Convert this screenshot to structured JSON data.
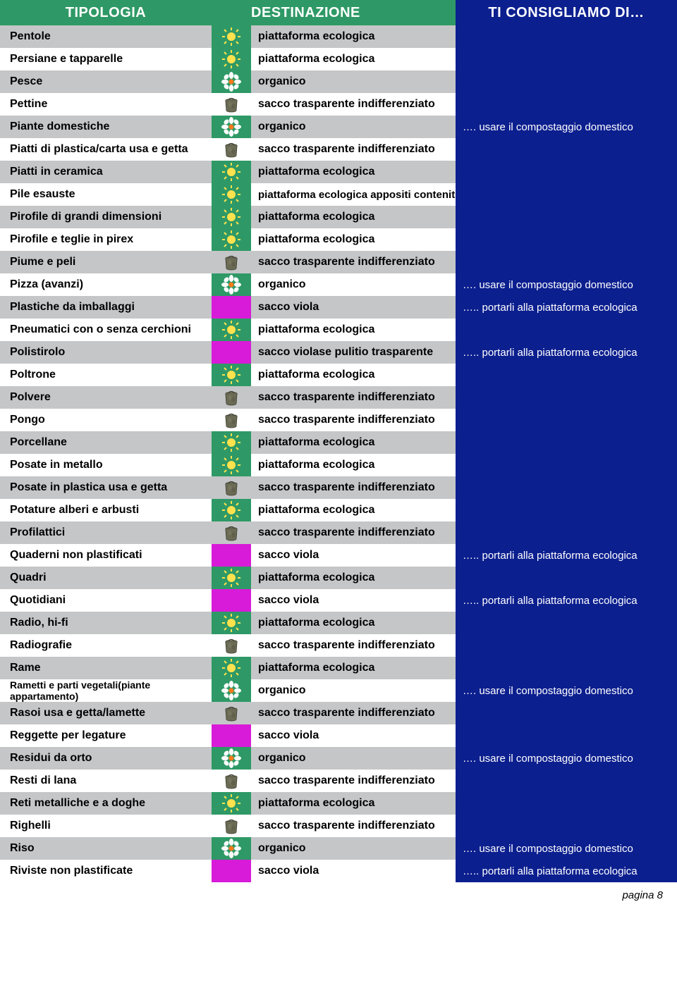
{
  "colors": {
    "header_green": "#2e9966",
    "header_blue": "#0c1f8f",
    "row_even": "#c4c6c8",
    "row_odd": "#ffffff",
    "tip_bg": "#0c1f8f",
    "icon_green": "#2e9966",
    "icon_purple": "#d81bd8"
  },
  "header": {
    "tipologia": "TIPOLOGIA",
    "destinazione": "DESTINAZIONE",
    "tip": "TI CONSIGLIAMO DI…"
  },
  "tips": {
    "compost": "…. usare il compostaggio domestico",
    "piattaforma": "….. portarli alla piattaforma ecologica"
  },
  "dest": {
    "piattaforma": "piattaforma ecologica",
    "organico": "organico",
    "sacco_trasp": "sacco trasparente indifferenziato",
    "piattaforma_cont": "piattaforma ecologica appositi contenitori",
    "sacco_viola": "sacco viola"
  },
  "rows": [
    {
      "t": "Pentole",
      "icon": "sun",
      "d": "piattaforma ecologica",
      "tip": ""
    },
    {
      "t": "Persiane e tapparelle",
      "icon": "sun",
      "d": "piattaforma ecologica",
      "tip": ""
    },
    {
      "t": "Pesce",
      "icon": "flower",
      "d": "organico",
      "tip": ""
    },
    {
      "t": "Pettine",
      "icon": "bag",
      "d": "sacco trasparente indifferenziato",
      "tip": ""
    },
    {
      "t": "Piante domestiche",
      "icon": "flower",
      "d": "organico",
      "tip": "…. usare il compostaggio domestico"
    },
    {
      "t": "Piatti di plastica/carta usa e getta",
      "icon": "bag",
      "d": "sacco trasparente indifferenziato",
      "tip": ""
    },
    {
      "t": "Piatti in ceramica",
      "icon": "sun",
      "d": "piattaforma ecologica",
      "tip": ""
    },
    {
      "t": "Pile esauste",
      "icon": "sun",
      "d": "piattaforma ecologica appositi contenitori",
      "tip": ""
    },
    {
      "t": "Pirofile di grandi dimensioni",
      "icon": "sun",
      "d": "piattaforma ecologica",
      "tip": ""
    },
    {
      "t": "Pirofile e teglie in pirex",
      "icon": "sun",
      "d": "piattaforma ecologica",
      "tip": ""
    },
    {
      "t": "Piume e peli",
      "icon": "bag",
      "d": "sacco trasparente indifferenziato",
      "tip": ""
    },
    {
      "t": "Pizza (avanzi)",
      "icon": "flower",
      "d": "organico",
      "tip": "…. usare il compostaggio domestico"
    },
    {
      "t": "Plastiche da imballaggi",
      "icon": "purple",
      "d": "sacco viola",
      "tip": "….. portarli alla piattaforma ecologica"
    },
    {
      "t": "Pneumatici con o senza cerchioni",
      "icon": "sun",
      "d": "piattaforma ecologica",
      "tip": ""
    },
    {
      "t": "Polistirolo",
      "icon": "purple",
      "d_html": "sacco viola <b>se puliti</b> o trasparente",
      "tip": "….. portarli alla piattaforma ecologica"
    },
    {
      "t": "Poltrone",
      "icon": "sun",
      "d": "piattaforma ecologica",
      "tip": ""
    },
    {
      "t": "Polvere",
      "icon": "bag",
      "d": "sacco trasparente indifferenziato",
      "tip": ""
    },
    {
      "t": "Pongo",
      "icon": "bag",
      "d": "sacco trasparente indifferenziato",
      "tip": ""
    },
    {
      "t": "Porcellane",
      "icon": "sun",
      "d": "piattaforma ecologica",
      "tip": ""
    },
    {
      "t": "Posate in metallo",
      "icon": "sun",
      "d": "piattaforma ecologica",
      "tip": ""
    },
    {
      "t": "Posate in plastica usa e getta",
      "icon": "bag",
      "d": "sacco trasparente indifferenziato",
      "tip": ""
    },
    {
      "t": "Potature alberi e arbusti",
      "icon": "sun",
      "d": "piattaforma ecologica",
      "tip": ""
    },
    {
      "t": "Profilattici",
      "icon": "bag",
      "d": "sacco trasparente indifferenziato",
      "tip": ""
    },
    {
      "t": "Quaderni non plastificati",
      "icon": "purple",
      "d": "sacco viola",
      "tip": "….. portarli alla piattaforma ecologica"
    },
    {
      "t": "Quadri",
      "icon": "sun",
      "d": "piattaforma ecologica",
      "tip": ""
    },
    {
      "t": "Quotidiani",
      "icon": "purple",
      "d": "sacco viola",
      "tip": "….. portarli alla piattaforma ecologica"
    },
    {
      "t": "Radio, hi-fi",
      "icon": "sun",
      "d": "piattaforma ecologica",
      "tip": ""
    },
    {
      "t": "Radiografie",
      "icon": "bag",
      "d": "sacco trasparente indifferenziato",
      "tip": ""
    },
    {
      "t": "Rame",
      "icon": "sun",
      "d": "piattaforma ecologica",
      "tip": ""
    },
    {
      "t": "Rametti e parti vegetali(piante appartamento)",
      "icon": "flower",
      "d": "organico",
      "tip": "…. usare il compostaggio domestico"
    },
    {
      "t": "Rasoi usa e getta/lamette",
      "icon": "bag",
      "d": "sacco trasparente indifferenziato",
      "tip": ""
    },
    {
      "t": "Reggette per legature",
      "icon": "purple",
      "d": "sacco viola",
      "tip": ""
    },
    {
      "t": "Residui da orto",
      "icon": "flower",
      "d": "organico",
      "tip": "…. usare il compostaggio domestico"
    },
    {
      "t": "Resti di lana",
      "icon": "bag",
      "d": "sacco trasparente indifferenziato",
      "tip": ""
    },
    {
      "t": "Reti metalliche e a doghe",
      "icon": "sun",
      "d": "piattaforma ecologica",
      "tip": ""
    },
    {
      "t": "Righelli",
      "icon": "bag",
      "d": "sacco trasparente indifferenziato",
      "tip": ""
    },
    {
      "t": "Riso",
      "icon": "flower",
      "d": "organico",
      "tip": "…. usare il compostaggio domestico"
    },
    {
      "t": "Riviste non  plastificate",
      "icon": "purple",
      "d": "sacco viola",
      "tip": "….. portarli alla piattaforma ecologica"
    }
  ],
  "footer": "pagina 8"
}
